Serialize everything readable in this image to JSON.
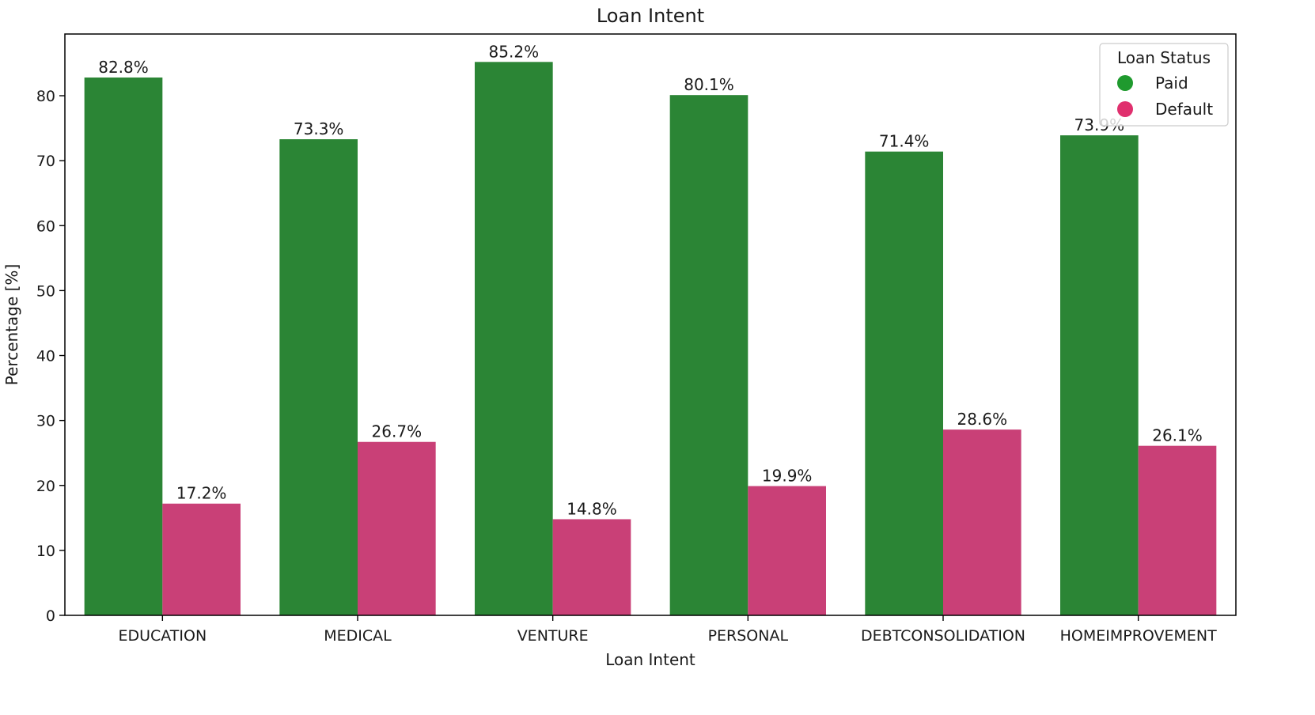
{
  "chart_data": {
    "type": "bar",
    "title": "Loan Intent",
    "xlabel": "Loan Intent",
    "ylabel": "Percentage [%]",
    "categories": [
      "EDUCATION",
      "MEDICAL",
      "VENTURE",
      "PERSONAL",
      "DEBTCONSOLIDATION",
      "HOMEIMPROVEMENT"
    ],
    "series": [
      {
        "name": "Paid",
        "color": "#2b8535",
        "marker_color": "#1f9a2e",
        "values": [
          82.8,
          73.3,
          85.2,
          80.1,
          71.4,
          73.9
        ],
        "labels": [
          "82.8%",
          "73.3%",
          "85.2%",
          "80.1%",
          "71.4%",
          "73.9%"
        ]
      },
      {
        "name": "Default",
        "color": "#c94077",
        "marker_color": "#e0306e",
        "values": [
          17.2,
          26.7,
          14.8,
          19.9,
          28.6,
          26.1
        ],
        "labels": [
          "17.2%",
          "26.7%",
          "14.8%",
          "19.9%",
          "28.6%",
          "26.1%"
        ]
      }
    ],
    "ylim": [
      0,
      89.5
    ],
    "yticks": [
      0,
      10,
      20,
      30,
      40,
      50,
      60,
      70,
      80
    ],
    "grid": false,
    "legend": {
      "title": "Loan Status",
      "placement": "top-right"
    }
  }
}
